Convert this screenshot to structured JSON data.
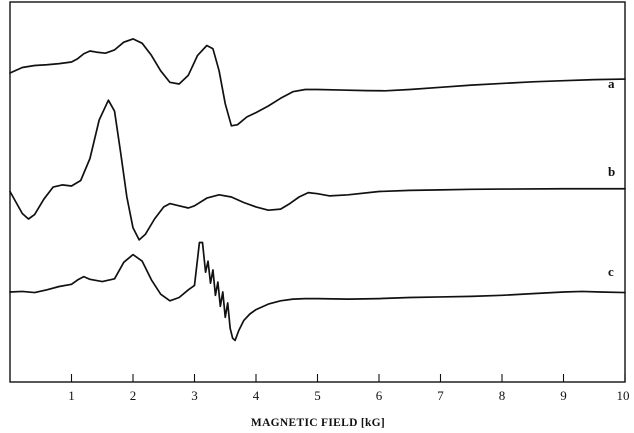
{
  "chart_data": {
    "type": "line",
    "title": "",
    "xlabel": "MAGNETIC FIELD [kG]",
    "ylabel": "",
    "xlim": [
      0,
      10
    ],
    "x_ticks": [
      1,
      2,
      3,
      4,
      5,
      6,
      7,
      8,
      9,
      10
    ],
    "grid": false,
    "legend": "none",
    "colors": {
      "line": "#111111",
      "background": "#ffffff"
    },
    "series": [
      {
        "name": "a",
        "points": [
          [
            0.0,
            0.1
          ],
          [
            0.2,
            0.15
          ],
          [
            0.4,
            0.168
          ],
          [
            0.6,
            0.175
          ],
          [
            0.8,
            0.185
          ],
          [
            1.0,
            0.2
          ],
          [
            1.1,
            0.23
          ],
          [
            1.2,
            0.275
          ],
          [
            1.3,
            0.3
          ],
          [
            1.4,
            0.29
          ],
          [
            1.55,
            0.28
          ],
          [
            1.7,
            0.31
          ],
          [
            1.85,
            0.38
          ],
          [
            2.0,
            0.41
          ],
          [
            2.15,
            0.37
          ],
          [
            2.3,
            0.26
          ],
          [
            2.45,
            0.12
          ],
          [
            2.6,
            0.015
          ],
          [
            2.75,
            0.0
          ],
          [
            2.9,
            0.08
          ],
          [
            3.05,
            0.26
          ],
          [
            3.2,
            0.35
          ],
          [
            3.3,
            0.32
          ],
          [
            3.4,
            0.12
          ],
          [
            3.5,
            -0.18
          ],
          [
            3.6,
            -0.38
          ],
          [
            3.7,
            -0.37
          ],
          [
            3.85,
            -0.3
          ],
          [
            4.0,
            -0.26
          ],
          [
            4.2,
            -0.2
          ],
          [
            4.4,
            -0.13
          ],
          [
            4.6,
            -0.07
          ],
          [
            4.8,
            -0.05
          ],
          [
            5.0,
            -0.05
          ],
          [
            5.4,
            -0.055
          ],
          [
            5.8,
            -0.06
          ],
          [
            6.1,
            -0.062
          ],
          [
            6.5,
            -0.05
          ],
          [
            7.0,
            -0.03
          ],
          [
            7.5,
            -0.01
          ],
          [
            8.0,
            0.005
          ],
          [
            8.5,
            0.02
          ],
          [
            9.0,
            0.03
          ],
          [
            9.5,
            0.04
          ],
          [
            10.0,
            0.045
          ]
        ]
      },
      {
        "name": "b",
        "points": [
          [
            0.0,
            0.05
          ],
          [
            0.1,
            -0.05
          ],
          [
            0.2,
            -0.15
          ],
          [
            0.3,
            -0.2
          ],
          [
            0.4,
            -0.16
          ],
          [
            0.55,
            -0.02
          ],
          [
            0.7,
            0.09
          ],
          [
            0.85,
            0.11
          ],
          [
            1.0,
            0.1
          ],
          [
            1.15,
            0.15
          ],
          [
            1.3,
            0.35
          ],
          [
            1.45,
            0.7
          ],
          [
            1.6,
            0.88
          ],
          [
            1.7,
            0.78
          ],
          [
            1.8,
            0.4
          ],
          [
            1.9,
            0.0
          ],
          [
            2.0,
            -0.28
          ],
          [
            2.1,
            -0.39
          ],
          [
            2.2,
            -0.34
          ],
          [
            2.35,
            -0.2
          ],
          [
            2.5,
            -0.09
          ],
          [
            2.6,
            -0.06
          ],
          [
            2.75,
            -0.08
          ],
          [
            2.9,
            -0.1
          ],
          [
            3.0,
            -0.08
          ],
          [
            3.2,
            -0.01
          ],
          [
            3.4,
            0.02
          ],
          [
            3.6,
            0.0
          ],
          [
            3.8,
            -0.05
          ],
          [
            4.0,
            -0.09
          ],
          [
            4.2,
            -0.12
          ],
          [
            4.4,
            -0.11
          ],
          [
            4.55,
            -0.06
          ],
          [
            4.7,
            0.0
          ],
          [
            4.85,
            0.04
          ],
          [
            5.0,
            0.03
          ],
          [
            5.2,
            0.01
          ],
          [
            5.5,
            0.02
          ],
          [
            6.0,
            0.05
          ],
          [
            6.5,
            0.06
          ],
          [
            7.0,
            0.065
          ],
          [
            7.5,
            0.07
          ],
          [
            8.0,
            0.072
          ],
          [
            9.0,
            0.075
          ],
          [
            10.0,
            0.075
          ]
        ]
      },
      {
        "name": "c",
        "points": [
          [
            0.0,
            0.0
          ],
          [
            0.2,
            0.005
          ],
          [
            0.4,
            -0.005
          ],
          [
            0.6,
            0.02
          ],
          [
            0.8,
            0.05
          ],
          [
            1.0,
            0.07
          ],
          [
            1.1,
            0.11
          ],
          [
            1.2,
            0.14
          ],
          [
            1.3,
            0.115
          ],
          [
            1.5,
            0.095
          ],
          [
            1.7,
            0.12
          ],
          [
            1.85,
            0.27
          ],
          [
            2.0,
            0.34
          ],
          [
            2.15,
            0.28
          ],
          [
            2.3,
            0.11
          ],
          [
            2.45,
            -0.02
          ],
          [
            2.6,
            -0.08
          ],
          [
            2.75,
            -0.05
          ],
          [
            2.9,
            0.02
          ],
          [
            3.0,
            0.06
          ],
          [
            3.08,
            0.45
          ],
          [
            3.13,
            0.45
          ],
          [
            3.18,
            0.18
          ],
          [
            3.22,
            0.28
          ],
          [
            3.26,
            0.08
          ],
          [
            3.3,
            0.2
          ],
          [
            3.34,
            -0.03
          ],
          [
            3.38,
            0.09
          ],
          [
            3.42,
            -0.13
          ],
          [
            3.46,
            0.0
          ],
          [
            3.5,
            -0.23
          ],
          [
            3.54,
            -0.1
          ],
          [
            3.58,
            -0.33
          ],
          [
            3.62,
            -0.42
          ],
          [
            3.66,
            -0.44
          ],
          [
            3.72,
            -0.35
          ],
          [
            3.8,
            -0.26
          ],
          [
            3.9,
            -0.2
          ],
          [
            4.0,
            -0.16
          ],
          [
            4.2,
            -0.11
          ],
          [
            4.4,
            -0.08
          ],
          [
            4.6,
            -0.065
          ],
          [
            4.8,
            -0.06
          ],
          [
            5.0,
            -0.06
          ],
          [
            5.5,
            -0.065
          ],
          [
            6.0,
            -0.06
          ],
          [
            6.5,
            -0.05
          ],
          [
            7.0,
            -0.045
          ],
          [
            7.5,
            -0.04
          ],
          [
            8.0,
            -0.03
          ],
          [
            8.5,
            -0.015
          ],
          [
            9.0,
            0.0
          ],
          [
            9.3,
            0.005
          ],
          [
            9.6,
            0.0
          ],
          [
            10.0,
            -0.005
          ]
        ]
      }
    ]
  }
}
